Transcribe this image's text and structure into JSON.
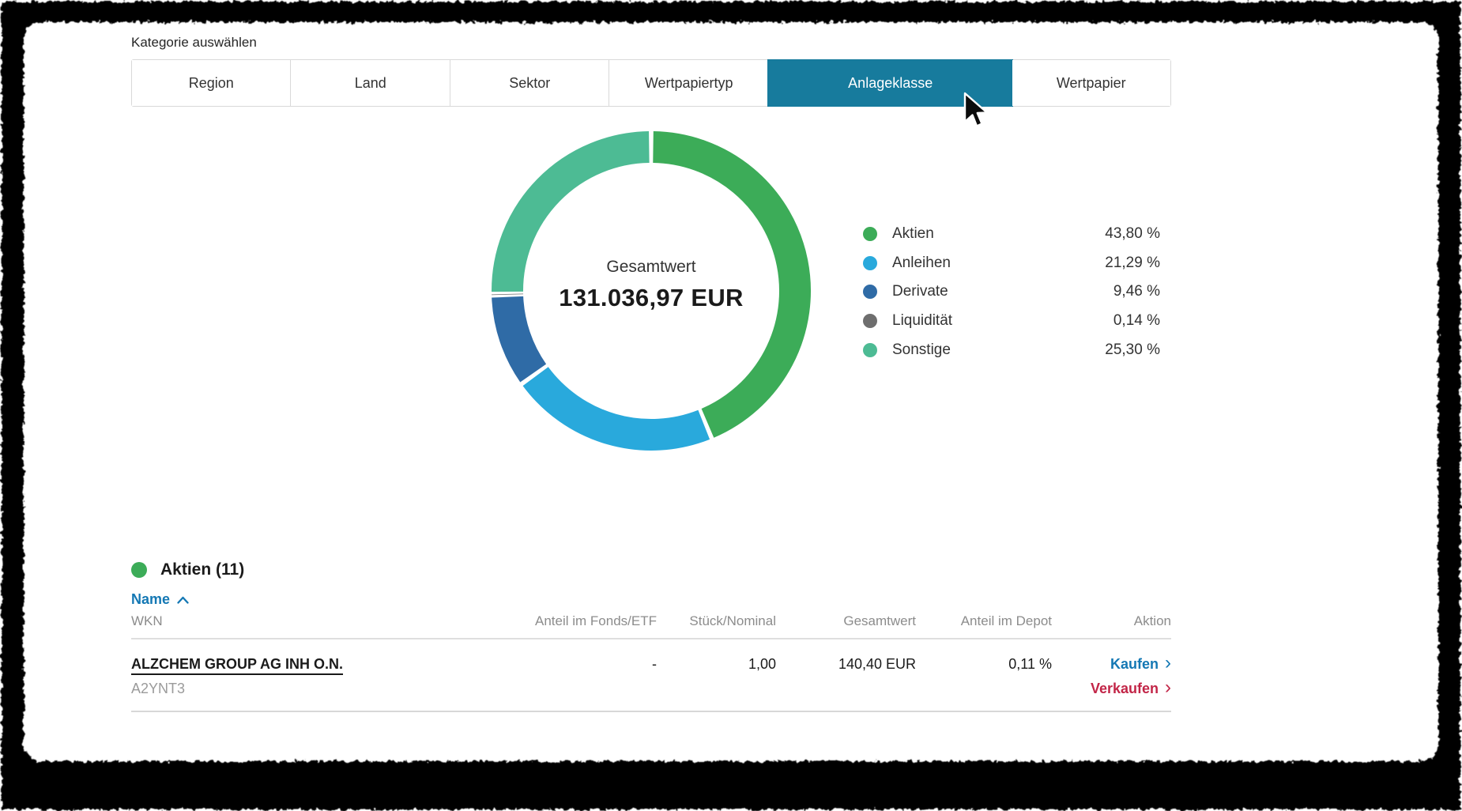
{
  "category_selector": {
    "label": "Kategorie auswählen",
    "tabs": [
      {
        "id": "region",
        "label": "Region",
        "active": false
      },
      {
        "id": "land",
        "label": "Land",
        "active": false
      },
      {
        "id": "sektor",
        "label": "Sektor",
        "active": false
      },
      {
        "id": "wertpapiertyp",
        "label": "Wertpapiertyp",
        "active": false
      },
      {
        "id": "anlageklasse",
        "label": "Anlageklasse",
        "active": true
      },
      {
        "id": "wertpapier",
        "label": "Wertpapier",
        "active": false
      }
    ]
  },
  "chart_data": {
    "type": "pie",
    "style": "donut",
    "center_label": "Gesamtwert",
    "center_value": "131.036,97 EUR",
    "legend_position": "right",
    "segments": [
      {
        "label": "Aktien",
        "value_pct": 43.8,
        "display": "43,80 %",
        "color": "#3CAC58"
      },
      {
        "label": "Anleihen",
        "value_pct": 21.29,
        "display": "21,29 %",
        "color": "#29A9DC"
      },
      {
        "label": "Derivate",
        "value_pct": 9.46,
        "display": "9,46 %",
        "color": "#2F6BA6"
      },
      {
        "label": "Liquidität",
        "value_pct": 0.14,
        "display": "0,14 %",
        "color": "#6E6E6E"
      },
      {
        "label": "Sonstige",
        "value_pct": 25.3,
        "display": "25,30 %",
        "color": "#4DBB94"
      }
    ]
  },
  "holdings": {
    "section_title": "Aktien (11)",
    "sort": {
      "column": "Name",
      "direction": "ascending"
    },
    "header": {
      "name": "Name",
      "wkn": "WKN",
      "fonds": "Anteil im Fonds/ETF",
      "stueck": "Stück/Nominal",
      "gesamtwert": "Gesamtwert",
      "depot": "Anteil im Depot",
      "aktion": "Aktion"
    },
    "rows": [
      {
        "name": "ALZCHEM GROUP AG INH O.N.",
        "wkn": "A2YNT3",
        "fonds": "-",
        "stueck": "1,00",
        "gesamtwert": "140,40 EUR",
        "depot": "0,11 %",
        "buy": "Kaufen",
        "sell": "Verkaufen"
      }
    ]
  },
  "colors": {
    "active_tab_teal": "#177B9D",
    "link_blue": "#1478B4",
    "sell_red": "#C22547",
    "section_green": "#3CAC58",
    "frame_black": "#060606"
  }
}
